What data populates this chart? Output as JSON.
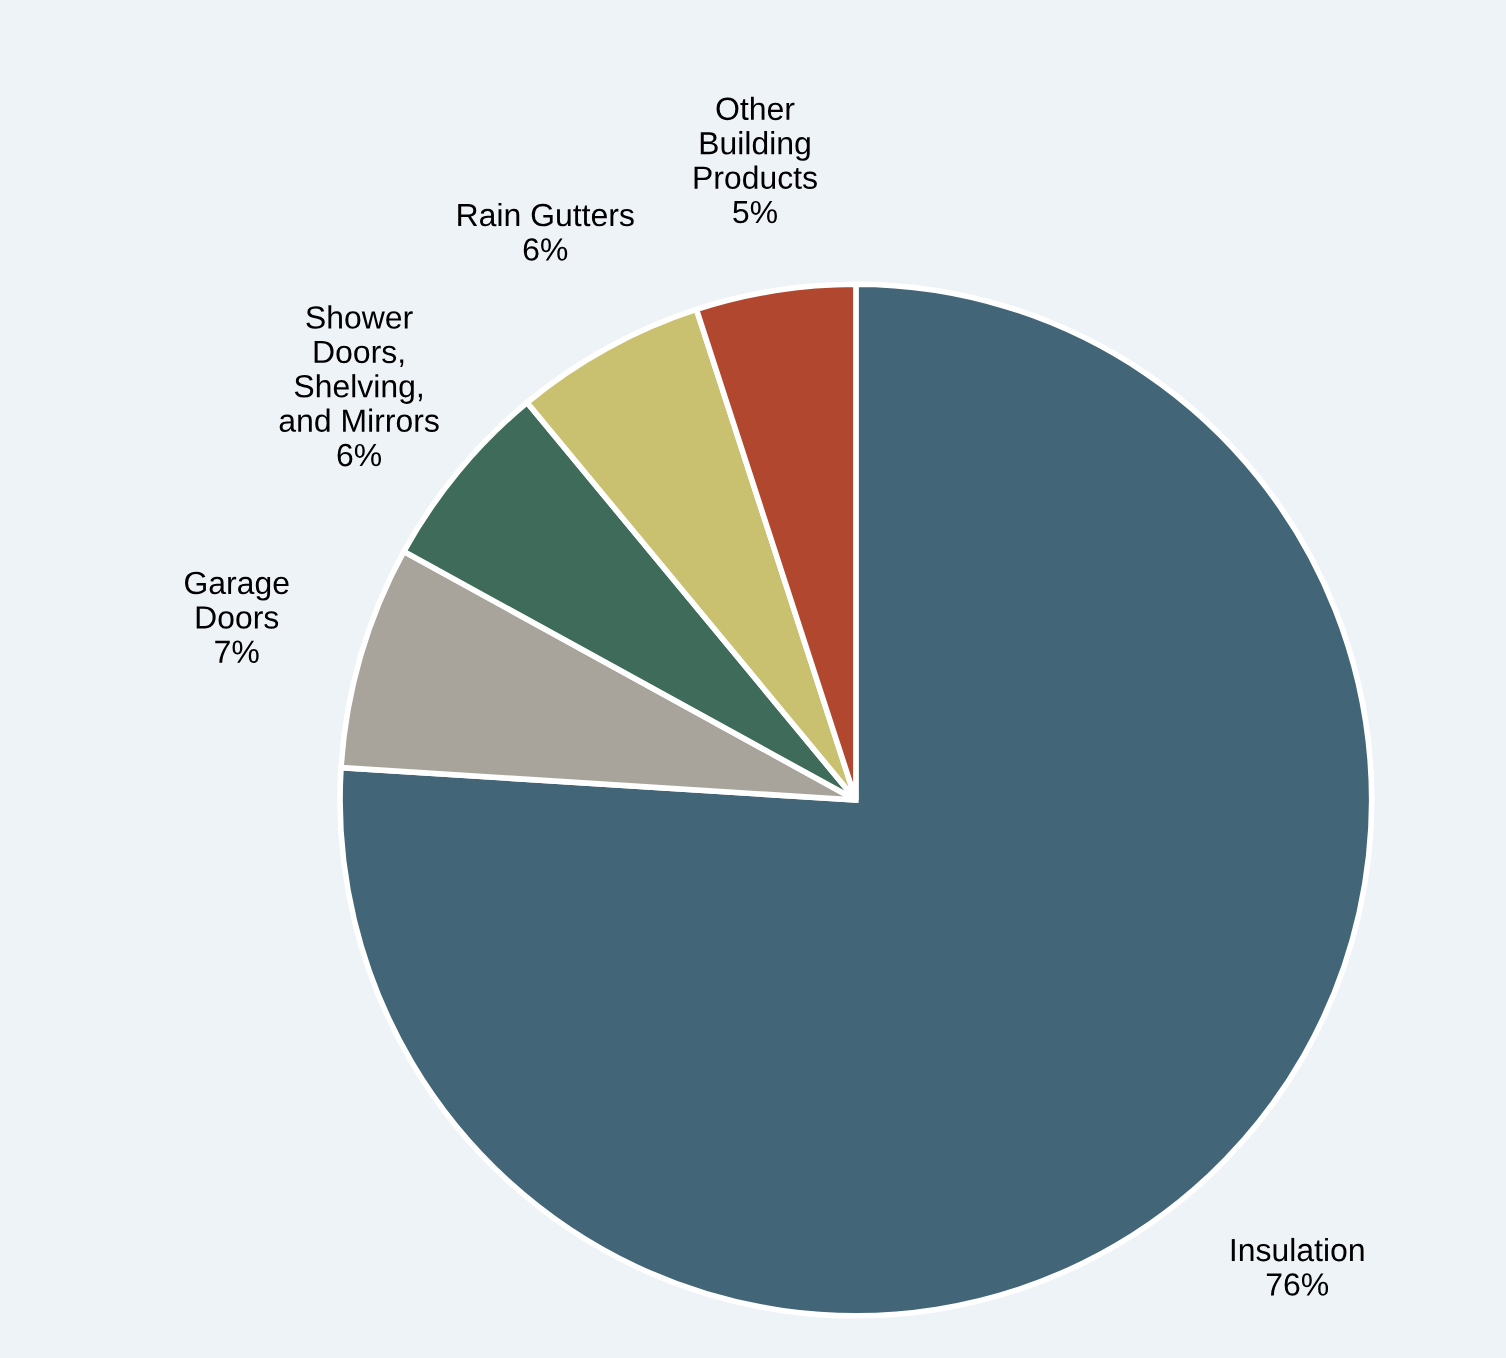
{
  "chart_data": {
    "type": "pie",
    "categories": [
      "Insulation",
      "Garage\nDoors",
      "Shower\nDoors,\nShelving,\nand Mirrors",
      "Rain Gutters",
      "Other\nBuilding\nProducts"
    ],
    "values": [
      76,
      7,
      6,
      6,
      5
    ],
    "value_labels": [
      "76%",
      "7%",
      "6%",
      "6%",
      "5%"
    ],
    "colors": [
      "#426578",
      "#a8a39b",
      "#3f6b5a",
      "#c9c070",
      "#b0472e"
    ],
    "legend": false
  }
}
